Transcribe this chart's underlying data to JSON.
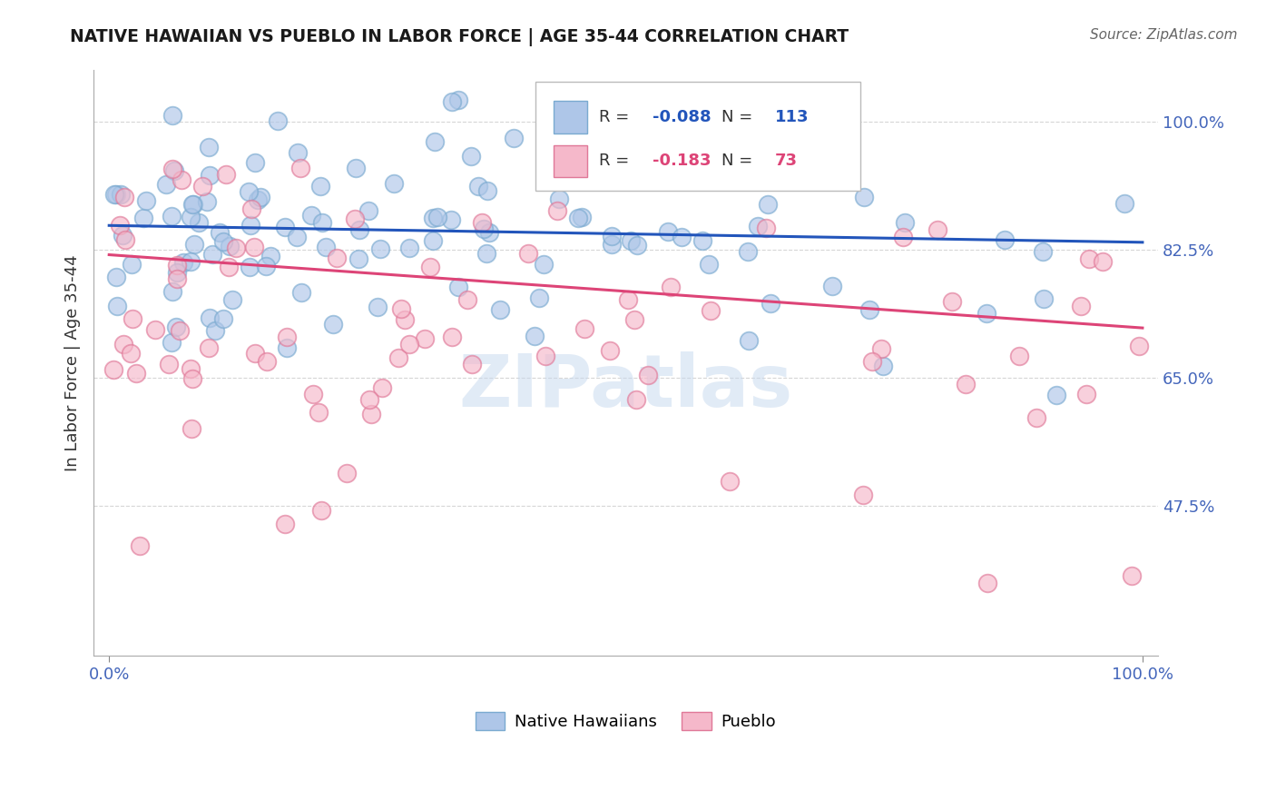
{
  "title": "NATIVE HAWAIIAN VS PUEBLO IN LABOR FORCE | AGE 35-44 CORRELATION CHART",
  "source": "Source: ZipAtlas.com",
  "ylabel": "In Labor Force | Age 35-44",
  "native_hawaiian_color": "#aec6e8",
  "native_hawaiian_edge_color": "#7aaad0",
  "pueblo_color": "#f5b8ca",
  "pueblo_edge_color": "#e07898",
  "line_blue": "#2255bb",
  "line_pink": "#dd4477",
  "R_blue": -0.088,
  "N_blue": 113,
  "R_pink": -0.183,
  "N_pink": 73,
  "watermark": "ZIPatlas",
  "background_color": "#ffffff",
  "grid_color": "#cccccc",
  "ytick_labels": [
    47.5,
    65.0,
    82.5,
    100.0
  ],
  "xtick_labels": [
    "0.0%",
    "100.0%"
  ],
  "blue_line_y0": 0.858,
  "blue_line_y1": 0.835,
  "pink_line_y0": 0.818,
  "pink_line_y1": 0.718,
  "ylim_low": 0.27,
  "ylim_high": 1.07,
  "xlim_low": -0.015,
  "xlim_high": 1.015
}
